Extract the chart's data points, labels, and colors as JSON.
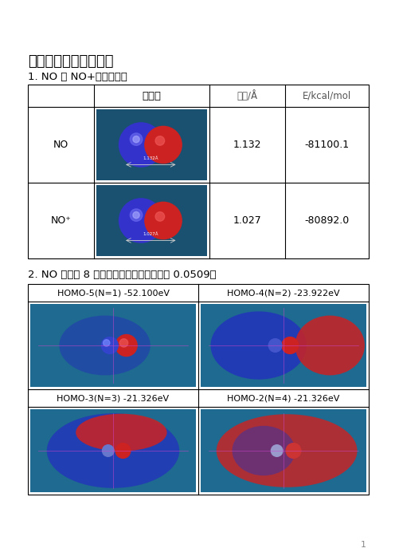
{
  "title": "一、分子轨道等値面图",
  "section1_title": "1. NO 和 NO+的优化构型",
  "section2_title": "2. NO 分子的 8 个分子轨道形状（等値面値 0.0509）",
  "table_header_col1": "分子图",
  "table_header_col2": "键长/Å",
  "table_header_col3": "E/kcal/mol",
  "table_rows": [
    {
      "label": "NO",
      "bond_length": "1.132",
      "energy": "-81100.1"
    },
    {
      "label": "NO⁺",
      "bond_length": "1.027",
      "energy": "-80892.0"
    }
  ],
  "homo_labels": [
    "HOMO-5(N=1) -52.100eV",
    "HOMO-4(N=2) -23.922eV",
    "HOMO-3(N=3) -21.326eV",
    "HOMO-2(N=4) -21.326eV"
  ],
  "page_number": "1",
  "bg_color": "#ffffff",
  "text_color": "#000000",
  "gray_text_color": "#888888",
  "line_color": "#000000",
  "img_bg_dark": "#1a5070",
  "img_bg_mid": "#1e6a90",
  "blue_sphere": "#3333cc",
  "blue_sphere_hi": "#6666ee",
  "red_sphere": "#cc2222",
  "red_sphere_hi": "#ee5555"
}
